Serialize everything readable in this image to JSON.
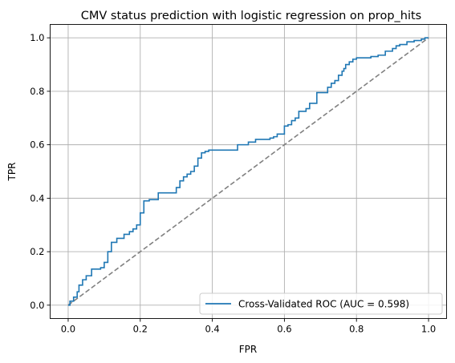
{
  "chart_data": {
    "type": "line",
    "title": "CMV status prediction with logistic regression on prop_hits",
    "xlabel": "FPR",
    "ylabel": "TPR",
    "xlim": [
      -0.05,
      1.05
    ],
    "ylim": [
      -0.05,
      1.05
    ],
    "xticks": [
      0.0,
      0.2,
      0.4,
      0.6,
      0.8,
      1.0
    ],
    "yticks": [
      0.0,
      0.2,
      0.4,
      0.6,
      0.8,
      1.0
    ],
    "xtick_labels": [
      "0.0",
      "0.2",
      "0.4",
      "0.6",
      "0.8",
      "1.0"
    ],
    "ytick_labels": [
      "0.0",
      "0.2",
      "0.4",
      "0.6",
      "0.8",
      "1.0"
    ],
    "grid": true,
    "legend_position": "lower-right",
    "colors": {
      "roc": "#1f77b4",
      "chance": "#808080",
      "grid": "#b0b0b0"
    },
    "series": [
      {
        "name": "Cross-Validated ROC (AUC = 0.598)",
        "style": "solid",
        "x": [
          0.0,
          0.005,
          0.005,
          0.015,
          0.015,
          0.025,
          0.025,
          0.03,
          0.03,
          0.04,
          0.04,
          0.05,
          0.05,
          0.065,
          0.065,
          0.09,
          0.09,
          0.1,
          0.1,
          0.11,
          0.11,
          0.12,
          0.12,
          0.135,
          0.135,
          0.155,
          0.155,
          0.17,
          0.17,
          0.18,
          0.18,
          0.19,
          0.19,
          0.2,
          0.2,
          0.21,
          0.21,
          0.225,
          0.225,
          0.25,
          0.25,
          0.3,
          0.3,
          0.31,
          0.31,
          0.32,
          0.32,
          0.33,
          0.33,
          0.34,
          0.34,
          0.35,
          0.35,
          0.36,
          0.36,
          0.37,
          0.37,
          0.38,
          0.38,
          0.39,
          0.39,
          0.47,
          0.47,
          0.5,
          0.5,
          0.52,
          0.52,
          0.56,
          0.56,
          0.57,
          0.57,
          0.58,
          0.58,
          0.6,
          0.6,
          0.61,
          0.61,
          0.62,
          0.62,
          0.63,
          0.63,
          0.64,
          0.64,
          0.66,
          0.66,
          0.67,
          0.67,
          0.69,
          0.69,
          0.72,
          0.72,
          0.73,
          0.73,
          0.74,
          0.74,
          0.75,
          0.75,
          0.76,
          0.76,
          0.765,
          0.765,
          0.77,
          0.77,
          0.78,
          0.78,
          0.79,
          0.79,
          0.8,
          0.8,
          0.84,
          0.84,
          0.86,
          0.86,
          0.88,
          0.88,
          0.9,
          0.9,
          0.91,
          0.91,
          0.92,
          0.92,
          0.94,
          0.94,
          0.96,
          0.96,
          0.98,
          0.98,
          0.99,
          0.99,
          1.0
        ],
        "y": [
          0.0,
          0.0,
          0.015,
          0.015,
          0.03,
          0.03,
          0.05,
          0.05,
          0.075,
          0.075,
          0.095,
          0.095,
          0.11,
          0.11,
          0.135,
          0.135,
          0.14,
          0.14,
          0.16,
          0.16,
          0.2,
          0.2,
          0.235,
          0.235,
          0.25,
          0.25,
          0.265,
          0.265,
          0.275,
          0.275,
          0.285,
          0.285,
          0.3,
          0.3,
          0.345,
          0.345,
          0.39,
          0.39,
          0.395,
          0.395,
          0.42,
          0.42,
          0.44,
          0.44,
          0.465,
          0.465,
          0.48,
          0.48,
          0.49,
          0.49,
          0.5,
          0.5,
          0.52,
          0.52,
          0.55,
          0.55,
          0.57,
          0.57,
          0.575,
          0.575,
          0.58,
          0.58,
          0.6,
          0.6,
          0.61,
          0.61,
          0.62,
          0.62,
          0.625,
          0.625,
          0.63,
          0.63,
          0.64,
          0.64,
          0.67,
          0.67,
          0.675,
          0.675,
          0.69,
          0.69,
          0.7,
          0.7,
          0.725,
          0.725,
          0.735,
          0.735,
          0.755,
          0.755,
          0.795,
          0.795,
          0.815,
          0.815,
          0.83,
          0.83,
          0.84,
          0.84,
          0.86,
          0.86,
          0.875,
          0.875,
          0.885,
          0.885,
          0.9,
          0.9,
          0.91,
          0.91,
          0.92,
          0.92,
          0.925,
          0.925,
          0.93,
          0.93,
          0.935,
          0.935,
          0.95,
          0.95,
          0.96,
          0.96,
          0.97,
          0.97,
          0.975,
          0.975,
          0.985,
          0.985,
          0.99,
          0.99,
          0.995,
          0.995,
          1.0,
          1.0
        ]
      },
      {
        "style": "dashed",
        "x": [
          0.0,
          1.0
        ],
        "y": [
          0.0,
          1.0
        ]
      }
    ]
  }
}
